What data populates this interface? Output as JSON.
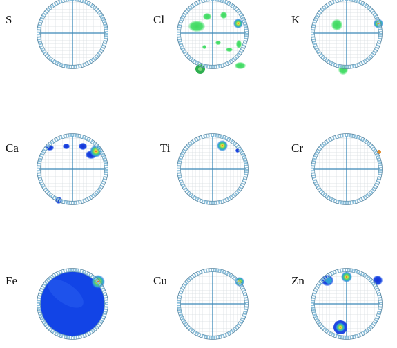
{
  "panels": [
    {
      "label": "S"
    },
    {
      "label": "Cl"
    },
    {
      "label": "K"
    },
    {
      "label": "Ca"
    },
    {
      "label": "Ti"
    },
    {
      "label": "Cr"
    },
    {
      "label": "Fe"
    },
    {
      "label": "Cu"
    },
    {
      "label": "Zn"
    }
  ]
}
